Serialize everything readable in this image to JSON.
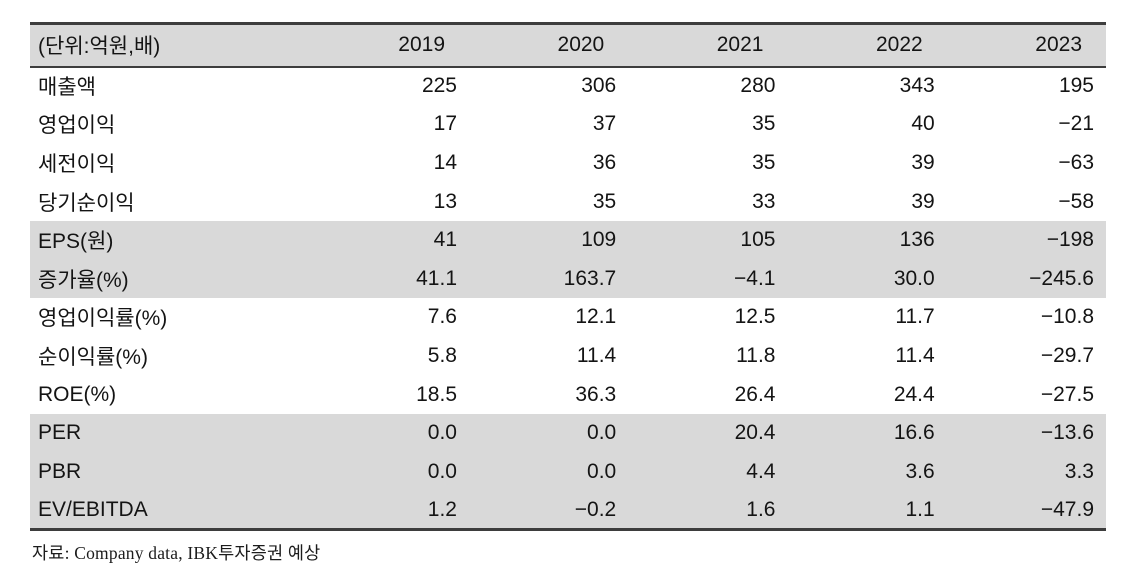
{
  "page": {
    "background": "#ffffff"
  },
  "table": {
    "unit_label": "(단위:억원,배)",
    "columns": [
      "2019",
      "2020",
      "2021",
      "2022",
      "2023"
    ],
    "rows": [
      {
        "label": "매출액",
        "values": [
          "225",
          "306",
          "280",
          "343",
          "195"
        ],
        "shaded": false
      },
      {
        "label": "영업이익",
        "values": [
          "17",
          "37",
          "35",
          "40",
          "−21"
        ],
        "shaded": false
      },
      {
        "label": "세전이익",
        "values": [
          "14",
          "36",
          "35",
          "39",
          "−63"
        ],
        "shaded": false
      },
      {
        "label": "당기순이익",
        "values": [
          "13",
          "35",
          "33",
          "39",
          "−58"
        ],
        "shaded": false
      },
      {
        "label": "EPS(원)",
        "values": [
          "41",
          "109",
          "105",
          "136",
          "−198"
        ],
        "shaded": true
      },
      {
        "label": "증가율(%)",
        "values": [
          "41.1",
          "163.7",
          "−4.1",
          "30.0",
          "−245.6"
        ],
        "shaded": true
      },
      {
        "label": "영업이익률(%)",
        "values": [
          "7.6",
          "12.1",
          "12.5",
          "11.7",
          "−10.8"
        ],
        "shaded": false
      },
      {
        "label": "순이익률(%)",
        "values": [
          "5.8",
          "11.4",
          "11.8",
          "11.4",
          "−29.7"
        ],
        "shaded": false
      },
      {
        "label": "ROE(%)",
        "values": [
          "18.5",
          "36.3",
          "26.4",
          "24.4",
          "−27.5"
        ],
        "shaded": false
      },
      {
        "label": "PER",
        "values": [
          "0.0",
          "0.0",
          "20.4",
          "16.6",
          "−13.6"
        ],
        "shaded": true
      },
      {
        "label": "PBR",
        "values": [
          "0.0",
          "0.0",
          "4.4",
          "3.6",
          "3.3"
        ],
        "shaded": true
      },
      {
        "label": "EV/EBITDA",
        "values": [
          "1.2",
          "−0.2",
          "1.6",
          "1.1",
          "−47.9"
        ],
        "shaded": true
      }
    ],
    "colors": {
      "header_bg": "#d9d9d9",
      "shaded_row_bg": "#d9d9d9",
      "border": "#3d3d3d",
      "text": "#141414"
    }
  },
  "footer": {
    "source_note": "자료: Company data, IBK투자증권 예상"
  }
}
